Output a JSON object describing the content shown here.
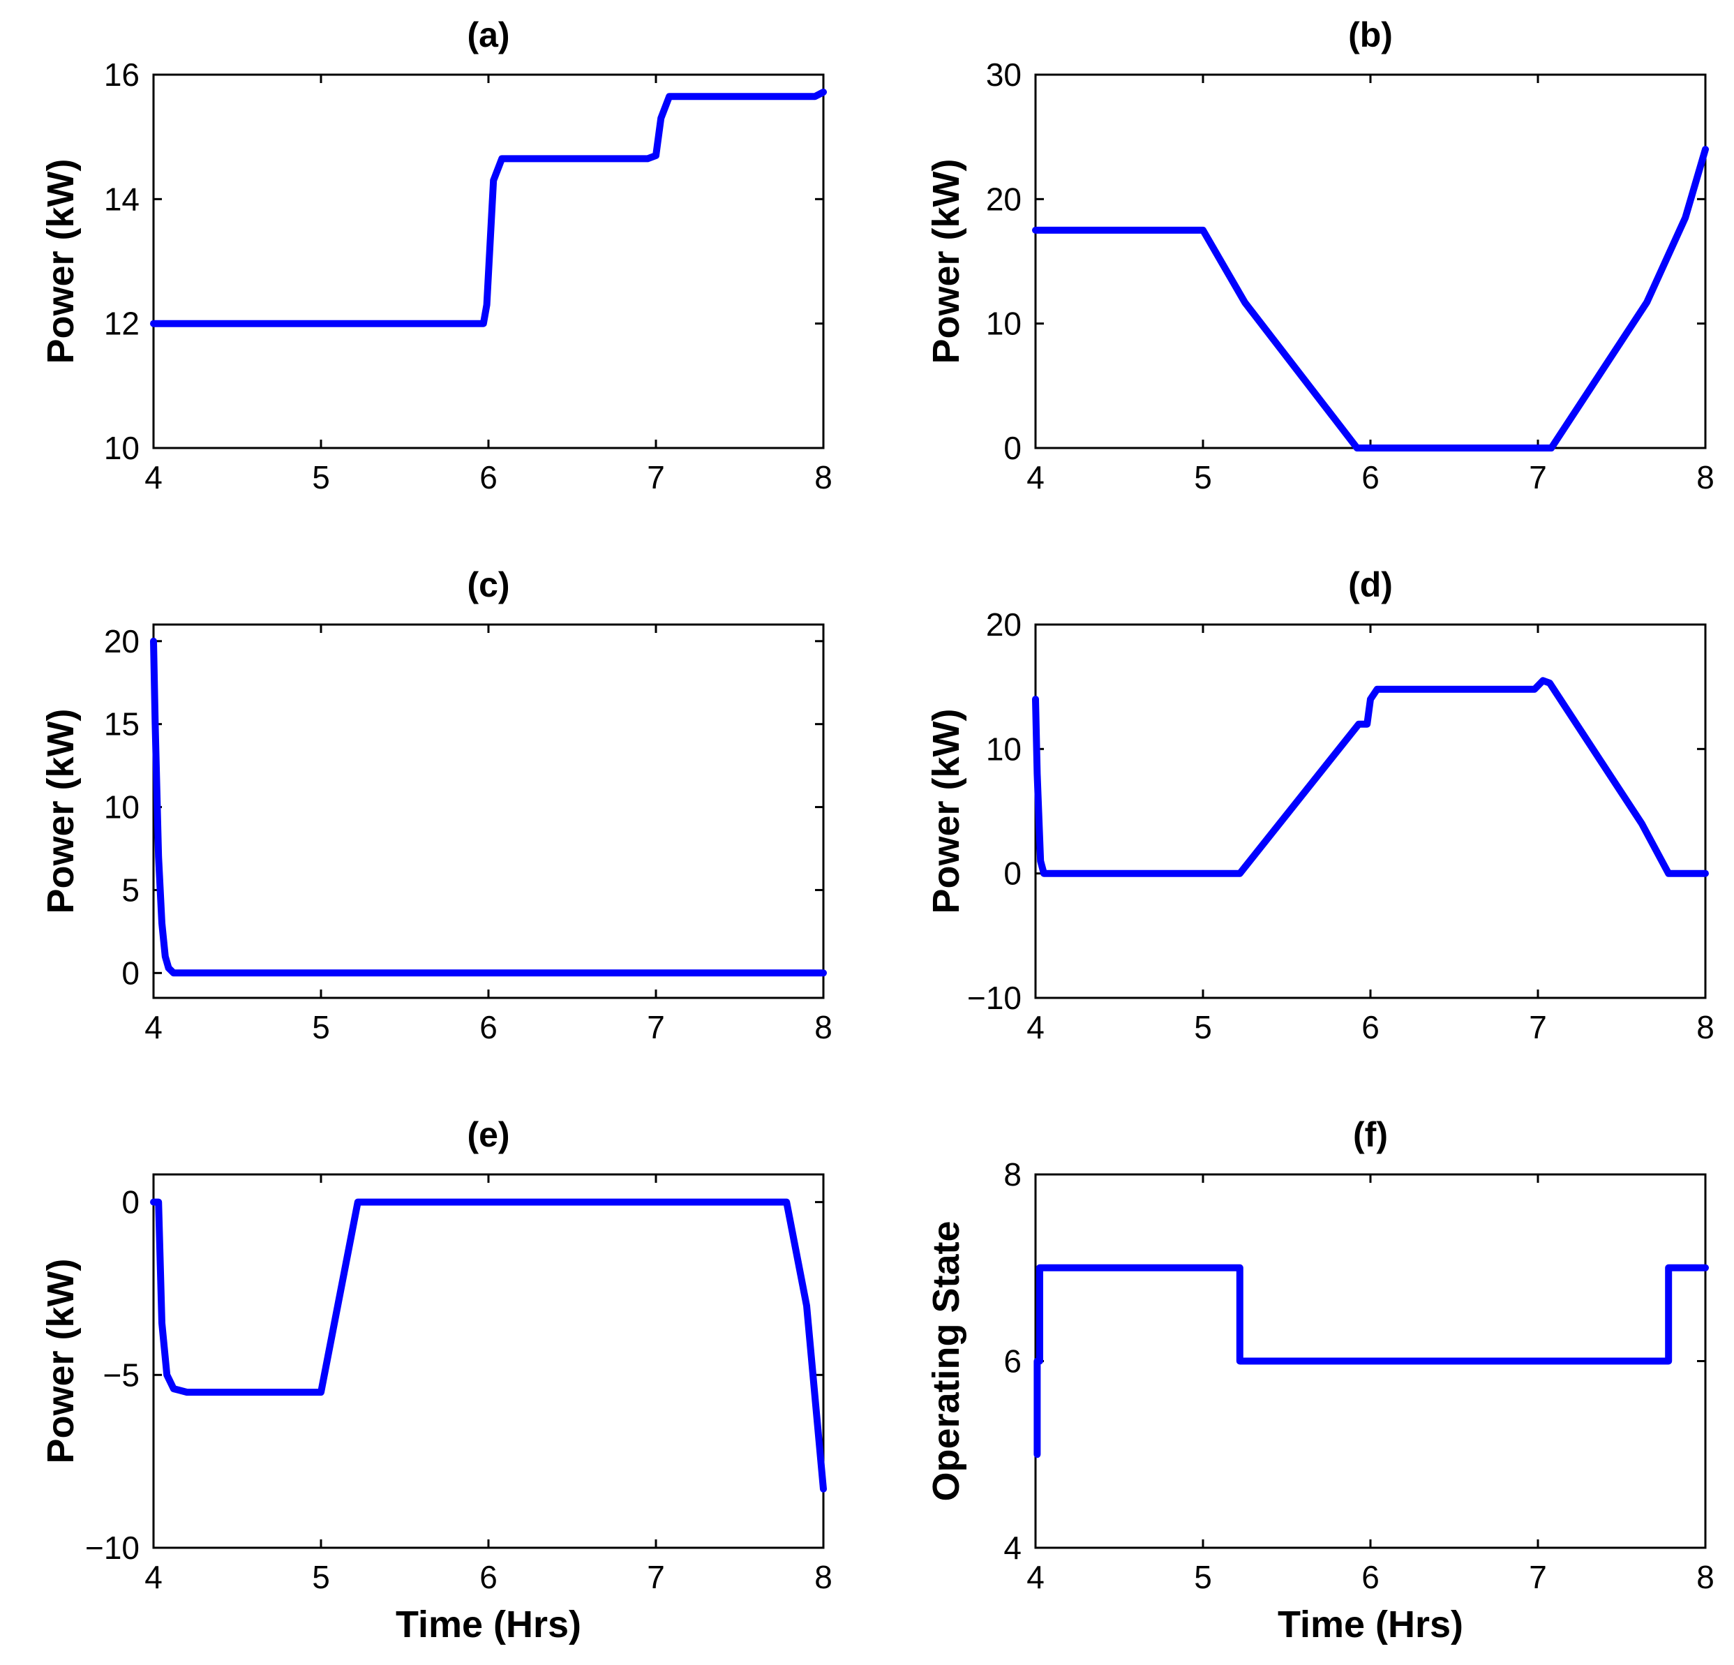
{
  "chart_data": [
    {
      "type": "line",
      "title": "(a)",
      "xlabel": "",
      "ylabel": "Power (kW)",
      "xlim": [
        4,
        8
      ],
      "ylim": [
        10,
        16
      ],
      "xticks": [
        4,
        5,
        6,
        7,
        8
      ],
      "yticks": [
        10,
        12,
        14,
        16
      ],
      "ytick_labels": [
        "10",
        "12",
        "14",
        "16"
      ],
      "grid": false,
      "color": "#0000ff",
      "series": [
        {
          "name": "Power",
          "x": [
            4,
            5.5,
            5.97,
            5.99,
            6.03,
            6.08,
            6.6,
            6.95,
            7.0,
            7.03,
            7.08,
            7.5,
            7.95,
            8.0
          ],
          "y": [
            12.0,
            12.0,
            12.0,
            12.3,
            14.3,
            14.65,
            14.65,
            14.65,
            14.7,
            15.3,
            15.65,
            15.65,
            15.65,
            15.72
          ]
        }
      ]
    },
    {
      "type": "line",
      "title": "(b)",
      "xlabel": "",
      "ylabel": "Power (kW)",
      "xlim": [
        4,
        8
      ],
      "ylim": [
        0,
        30
      ],
      "xticks": [
        4,
        5,
        6,
        7,
        8
      ],
      "yticks": [
        0,
        10,
        20,
        30
      ],
      "ytick_labels": [
        "0",
        "10",
        "20",
        "30"
      ],
      "grid": false,
      "color": "#0000ff",
      "series": [
        {
          "name": "Power",
          "x": [
            4,
            5.0,
            5.25,
            5.92,
            7.08,
            7.65,
            7.88,
            8.0
          ],
          "y": [
            17.5,
            17.5,
            11.7,
            0,
            0,
            11.7,
            18.5,
            24.0
          ]
        }
      ]
    },
    {
      "type": "line",
      "title": "(c)",
      "xlabel": "",
      "ylabel": "Power (kW)",
      "xlim": [
        4,
        8
      ],
      "ylim": [
        -1.5,
        21
      ],
      "xticks": [
        4,
        5,
        6,
        7,
        8
      ],
      "yticks": [
        0,
        5,
        10,
        15,
        20
      ],
      "ytick_labels": [
        "0",
        "5",
        "10",
        "15",
        "20"
      ],
      "grid": false,
      "color": "#0000ff",
      "series": [
        {
          "name": "Power",
          "x": [
            4.0,
            4.01,
            4.03,
            4.05,
            4.07,
            4.09,
            4.12,
            5,
            6,
            7,
            8
          ],
          "y": [
            20.0,
            15.0,
            7.0,
            3.0,
            1.0,
            0.3,
            0.0,
            0.0,
            0.0,
            0.0,
            0.0
          ]
        }
      ]
    },
    {
      "type": "line",
      "title": "(d)",
      "xlabel": "",
      "ylabel": "Power (kW)",
      "xlim": [
        4,
        8
      ],
      "ylim": [
        -10,
        20
      ],
      "xticks": [
        4,
        5,
        6,
        7,
        8
      ],
      "yticks": [
        -10,
        0,
        10,
        20
      ],
      "ytick_labels": [
        "−10",
        "0",
        "10",
        "20"
      ],
      "grid": false,
      "color": "#0000ff",
      "series": [
        {
          "name": "Power",
          "x": [
            4.0,
            4.01,
            4.03,
            4.05,
            5.0,
            5.22,
            5.93,
            5.98,
            6.0,
            6.04,
            6.08,
            6.6,
            6.98,
            7.03,
            7.07,
            7.62,
            7.78,
            8.0
          ],
          "y": [
            14.0,
            8.0,
            1.0,
            0.0,
            0.0,
            0.0,
            12.0,
            12.0,
            14.0,
            14.8,
            14.8,
            14.8,
            14.8,
            15.5,
            15.3,
            4.0,
            0.0,
            0.0
          ]
        }
      ]
    },
    {
      "type": "line",
      "title": "(e)",
      "xlabel": "Time (Hrs)",
      "ylabel": "Power (kW)",
      "xlim": [
        4,
        8
      ],
      "ylim": [
        -10,
        0.8
      ],
      "xticks": [
        4,
        5,
        6,
        7,
        8
      ],
      "yticks": [
        -10,
        -5,
        0
      ],
      "ytick_labels": [
        "−10",
        "−5",
        "0"
      ],
      "grid": false,
      "color": "#0000ff",
      "series": [
        {
          "name": "Power",
          "x": [
            4.0,
            4.03,
            4.05,
            4.08,
            4.12,
            4.2,
            5.0,
            5.22,
            7.78,
            7.9,
            8.0
          ],
          "y": [
            0.0,
            0.0,
            -3.5,
            -5.0,
            -5.4,
            -5.5,
            -5.5,
            0.0,
            0.0,
            -3.0,
            -8.3
          ]
        }
      ]
    },
    {
      "type": "line",
      "title": "(f)",
      "xlabel": "Time (Hrs)",
      "ylabel": "Operating State",
      "xlim": [
        4,
        8
      ],
      "ylim": [
        4,
        8
      ],
      "xticks": [
        4,
        5,
        6,
        7,
        8
      ],
      "yticks": [
        4,
        6,
        8
      ],
      "ytick_labels": [
        "4",
        "6",
        "8"
      ],
      "grid": false,
      "color": "#0000ff",
      "series": [
        {
          "name": "Operating State",
          "x": [
            4.01,
            4.01,
            4.025,
            4.025,
            4.04,
            4.04,
            5.22,
            5.22,
            7.78,
            7.78,
            8.0
          ],
          "y": [
            5,
            6,
            6,
            7,
            7,
            7,
            7,
            6,
            6,
            7,
            7
          ]
        }
      ]
    }
  ]
}
